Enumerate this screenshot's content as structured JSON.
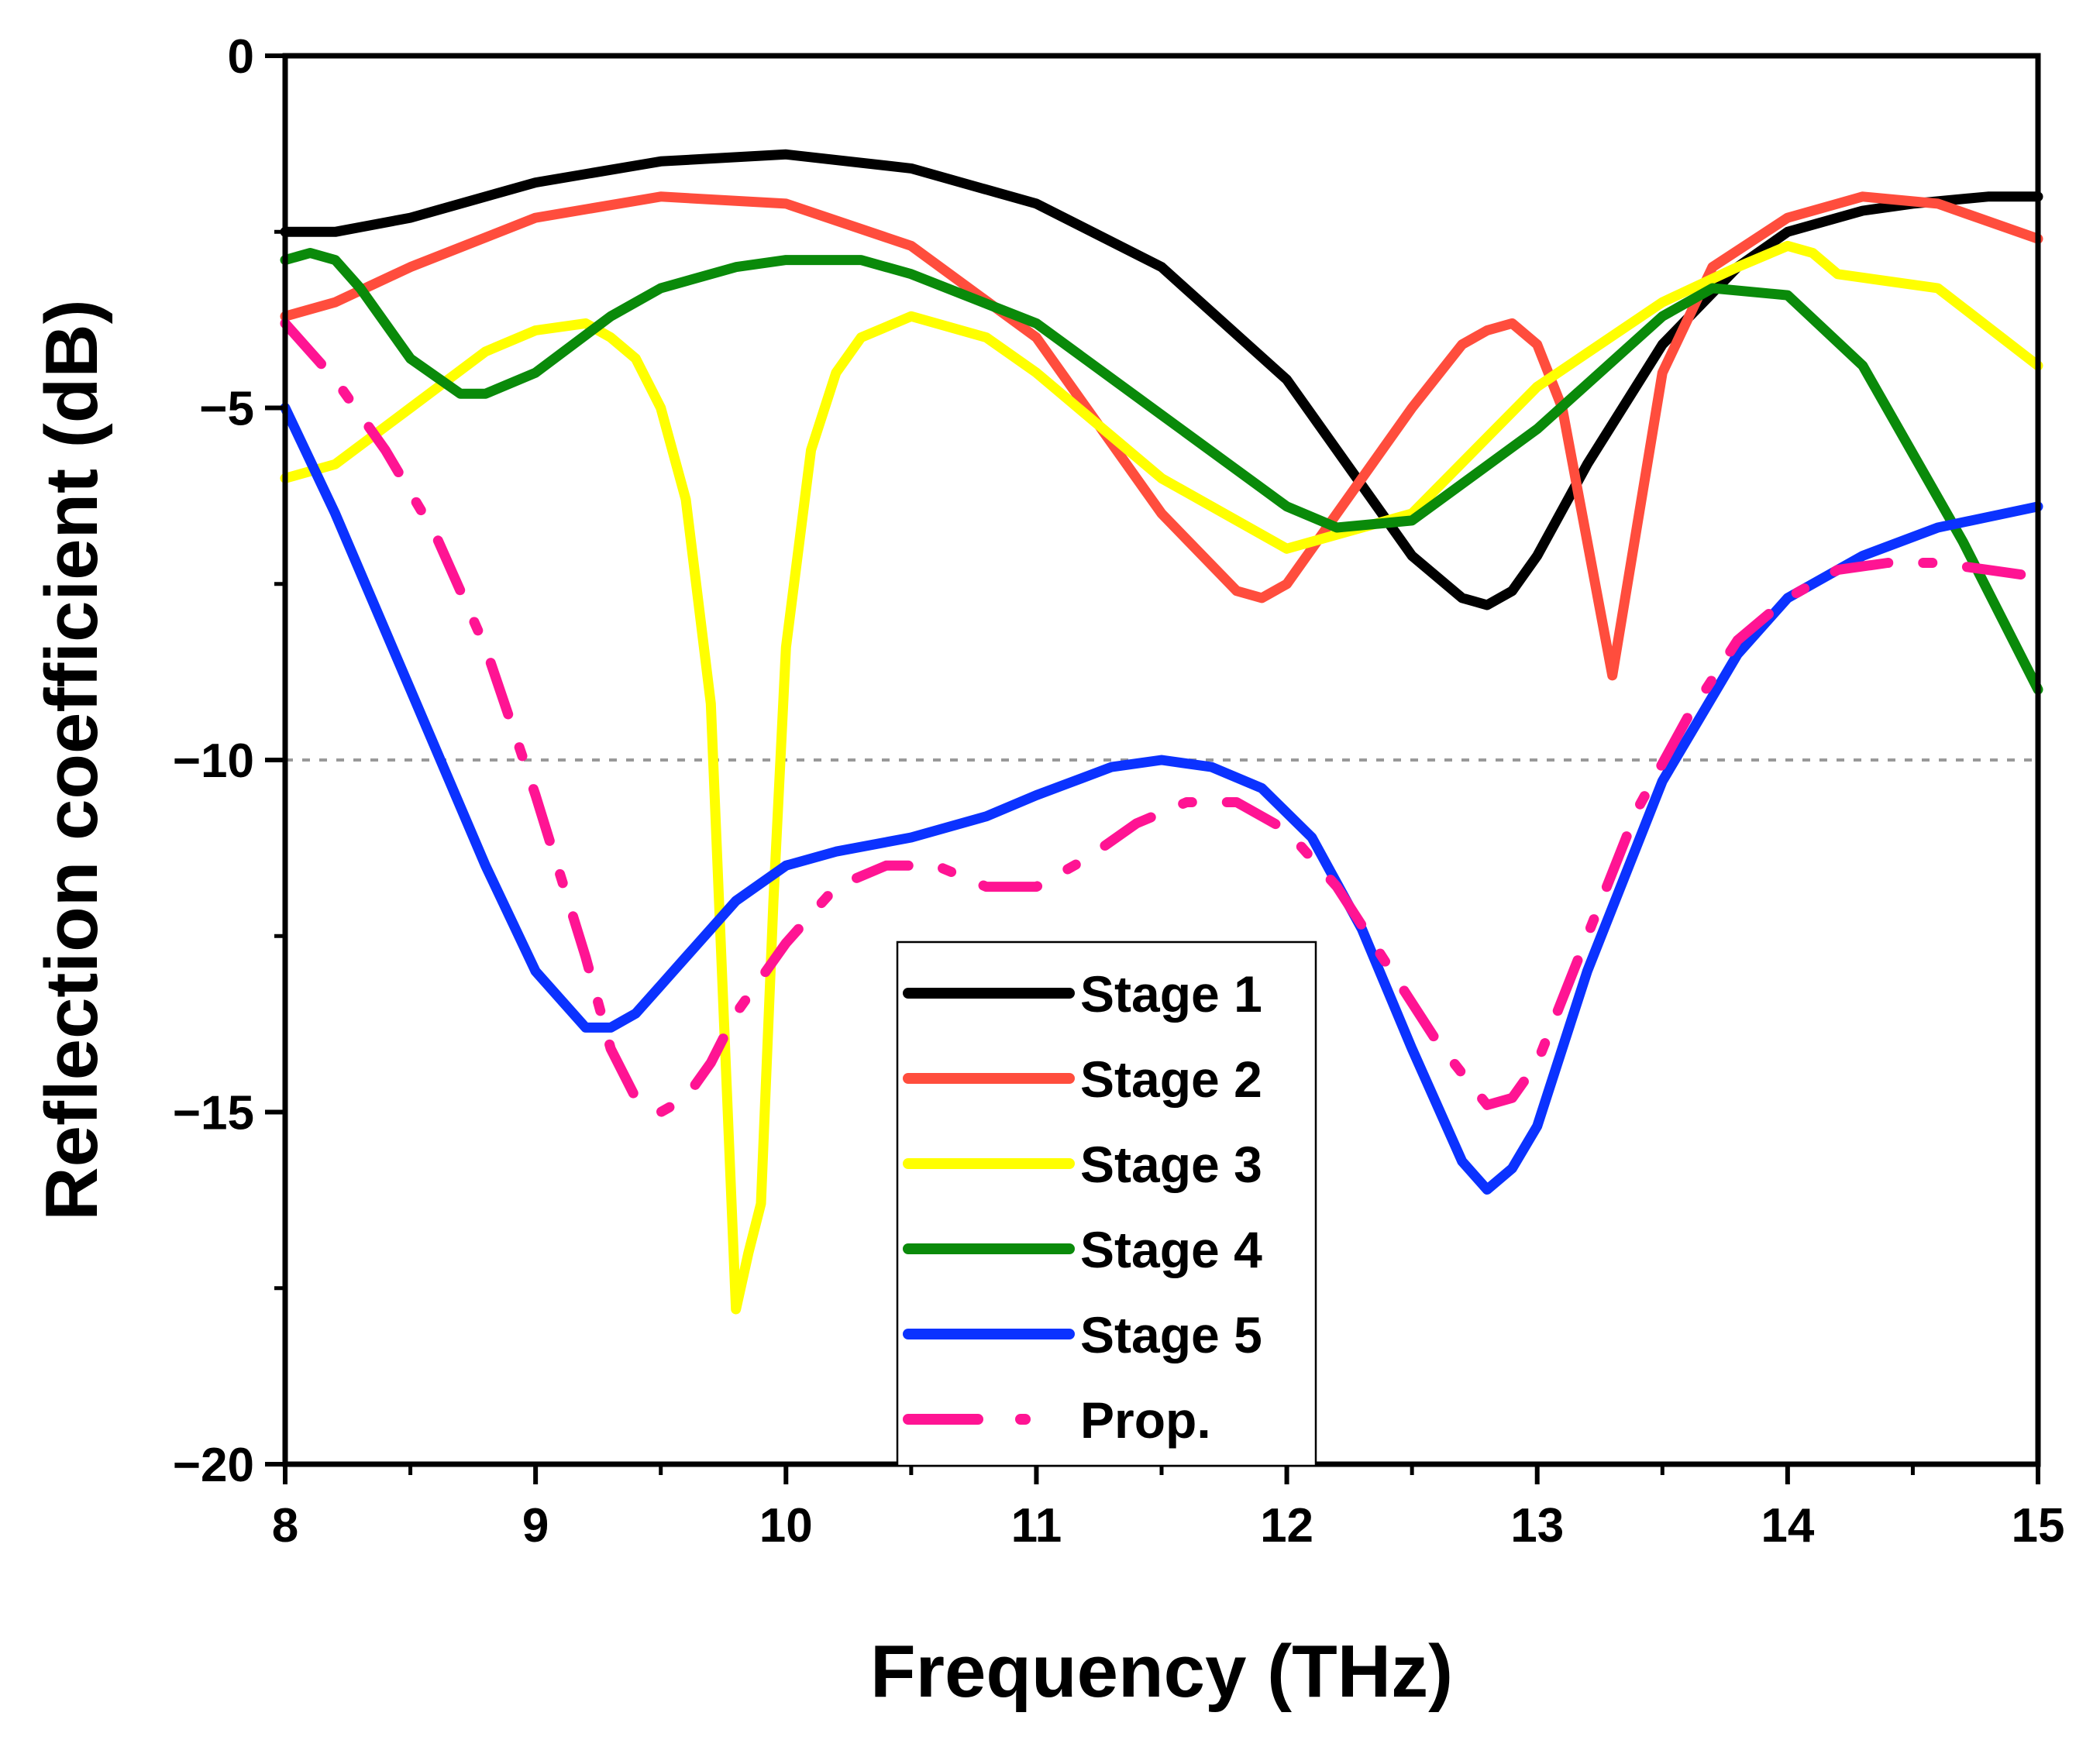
{
  "chart_data": {
    "type": "line",
    "title": "",
    "xlabel": "Frequency (THz)",
    "ylabel": "Reflection coefficient (dB)",
    "xlim": [
      8,
      15
    ],
    "ylim": [
      -20,
      0
    ],
    "xticks": [
      8,
      9,
      10,
      11,
      12,
      13,
      14,
      15
    ],
    "yticks": [
      0,
      -5,
      -10,
      -15,
      -20
    ],
    "xtick_labels": [
      "8",
      "9",
      "10",
      "11",
      "12",
      "13",
      "14",
      "15"
    ],
    "ytick_labels": [
      "0",
      "−5",
      "−10",
      "−15",
      "−20"
    ],
    "grid": false,
    "reference_line": {
      "y": -10,
      "style": "dotted",
      "color": "#999999"
    },
    "legend_position": "bottom-center",
    "series": [
      {
        "name": "Stage 1",
        "color": "#000000",
        "style": "solid",
        "x": [
          8.0,
          8.2,
          8.5,
          9.0,
          9.5,
          10.0,
          10.5,
          11.0,
          11.5,
          12.0,
          12.3,
          12.5,
          12.7,
          12.8,
          12.9,
          13.0,
          13.2,
          13.5,
          13.8,
          14.0,
          14.3,
          14.5,
          14.8,
          15.0
        ],
        "y": [
          -2.5,
          -2.5,
          -2.3,
          -1.8,
          -1.5,
          -1.4,
          -1.6,
          -2.1,
          -3.0,
          -4.6,
          -6.1,
          -7.1,
          -7.7,
          -7.8,
          -7.6,
          -7.1,
          -5.8,
          -4.1,
          -3.0,
          -2.5,
          -2.2,
          -2.1,
          -2.0,
          -2.0
        ]
      },
      {
        "name": "Stage 2",
        "color": "#ff4d3d",
        "style": "solid",
        "x": [
          8.0,
          8.2,
          8.5,
          9.0,
          9.5,
          10.0,
          10.5,
          11.0,
          11.5,
          11.8,
          11.9,
          12.0,
          12.2,
          12.5,
          12.7,
          12.8,
          12.9,
          13.0,
          13.1,
          13.3,
          13.5,
          13.7,
          14.0,
          14.3,
          14.6,
          15.0
        ],
        "y": [
          -3.7,
          -3.5,
          -3.0,
          -2.3,
          -2.0,
          -2.1,
          -2.7,
          -4.0,
          -6.5,
          -7.6,
          -7.7,
          -7.5,
          -6.5,
          -5.0,
          -4.1,
          -3.9,
          -3.8,
          -4.1,
          -5.0,
          -8.8,
          -4.5,
          -3.0,
          -2.3,
          -2.0,
          -2.1,
          -2.6
        ]
      },
      {
        "name": "Stage 3",
        "color": "#ffff00",
        "style": "solid",
        "x": [
          8.0,
          8.2,
          8.5,
          8.8,
          9.0,
          9.2,
          9.3,
          9.4,
          9.5,
          9.6,
          9.7,
          9.75,
          9.8,
          9.85,
          9.9,
          9.95,
          10.0,
          10.1,
          10.2,
          10.3,
          10.5,
          10.8,
          11.0,
          11.5,
          12.0,
          12.5,
          13.0,
          13.5,
          13.8,
          14.0,
          14.1,
          14.2,
          14.4,
          14.6,
          15.0
        ],
        "y": [
          -6.0,
          -5.8,
          -5.0,
          -4.2,
          -3.9,
          -3.8,
          -4.0,
          -4.3,
          -5.0,
          -6.3,
          -9.2,
          -13.5,
          -17.8,
          -17.0,
          -16.3,
          -12.0,
          -8.4,
          -5.6,
          -4.5,
          -4.0,
          -3.7,
          -4.0,
          -4.5,
          -6.0,
          -7.0,
          -6.5,
          -4.7,
          -3.5,
          -3.0,
          -2.7,
          -2.8,
          -3.1,
          -3.2,
          -3.3,
          -4.4
        ]
      },
      {
        "name": "Stage 4",
        "color": "#0a8a0a",
        "style": "solid",
        "x": [
          8.0,
          8.1,
          8.2,
          8.3,
          8.5,
          8.7,
          8.8,
          9.0,
          9.3,
          9.5,
          9.8,
          10.0,
          10.3,
          10.5,
          11.0,
          11.5,
          12.0,
          12.2,
          12.5,
          13.0,
          13.5,
          13.7,
          14.0,
          14.3,
          14.7,
          15.0
        ],
        "y": [
          -2.9,
          -2.8,
          -2.9,
          -3.3,
          -4.3,
          -4.8,
          -4.8,
          -4.5,
          -3.7,
          -3.3,
          -3.0,
          -2.9,
          -2.9,
          -3.1,
          -3.8,
          -5.1,
          -6.4,
          -6.7,
          -6.6,
          -5.3,
          -3.7,
          -3.3,
          -3.4,
          -4.4,
          -6.9,
          -9.0
        ]
      },
      {
        "name": "Stage 5",
        "color": "#0b32ff",
        "style": "solid",
        "x": [
          8.0,
          8.2,
          8.5,
          8.8,
          9.0,
          9.2,
          9.3,
          9.4,
          9.5,
          9.6,
          9.8,
          10.0,
          10.2,
          10.5,
          10.8,
          11.0,
          11.3,
          11.5,
          11.7,
          11.9,
          12.1,
          12.3,
          12.5,
          12.7,
          12.8,
          12.9,
          13.0,
          13.2,
          13.5,
          13.8,
          14.0,
          14.3,
          14.6,
          15.0
        ],
        "y": [
          -5.0,
          -6.5,
          -9.0,
          -11.5,
          -13.0,
          -13.8,
          -13.8,
          -13.6,
          -13.2,
          -12.8,
          -12.0,
          -11.5,
          -11.3,
          -11.1,
          -10.8,
          -10.5,
          -10.1,
          -10.0,
          -10.1,
          -10.4,
          -11.1,
          -12.4,
          -14.1,
          -15.7,
          -16.1,
          -15.8,
          -15.2,
          -13.0,
          -10.3,
          -8.5,
          -7.7,
          -7.1,
          -6.7,
          -6.4
        ]
      },
      {
        "name": "Prop.",
        "color": "#ff1493",
        "style": "dash-dot",
        "x": [
          8.0,
          8.2,
          8.4,
          8.6,
          8.8,
          9.0,
          9.2,
          9.3,
          9.4,
          9.5,
          9.6,
          9.7,
          9.8,
          10.0,
          10.2,
          10.4,
          10.6,
          10.8,
          11.0,
          11.2,
          11.4,
          11.6,
          11.8,
          12.0,
          12.2,
          12.4,
          12.6,
          12.8,
          12.9,
          13.0,
          13.2,
          13.4,
          13.6,
          13.8,
          14.0,
          14.2,
          14.4,
          14.6,
          14.8,
          15.0
        ],
        "y": [
          -3.8,
          -4.6,
          -5.6,
          -6.8,
          -8.4,
          -10.5,
          -12.8,
          -14.1,
          -14.8,
          -15.0,
          -14.8,
          -14.3,
          -13.6,
          -12.6,
          -11.8,
          -11.5,
          -11.5,
          -11.8,
          -11.8,
          -11.4,
          -10.9,
          -10.6,
          -10.6,
          -11.0,
          -11.8,
          -12.9,
          -14.0,
          -14.9,
          -14.8,
          -14.3,
          -12.5,
          -10.7,
          -9.4,
          -8.3,
          -7.7,
          -7.3,
          -7.2,
          -7.2,
          -7.3,
          -7.4
        ]
      }
    ]
  }
}
